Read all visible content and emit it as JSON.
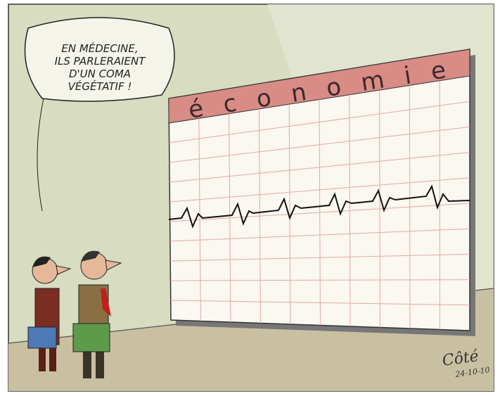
{
  "speech_bubble": {
    "lines": [
      "EN MÉDECINE,",
      "ILS PARLERAIENT",
      "D'UN COMA",
      "VÉGÉTATIF !"
    ]
  },
  "board": {
    "title": "économie"
  },
  "signature": {
    "name": "Côté",
    "date": "24-10-10"
  }
}
